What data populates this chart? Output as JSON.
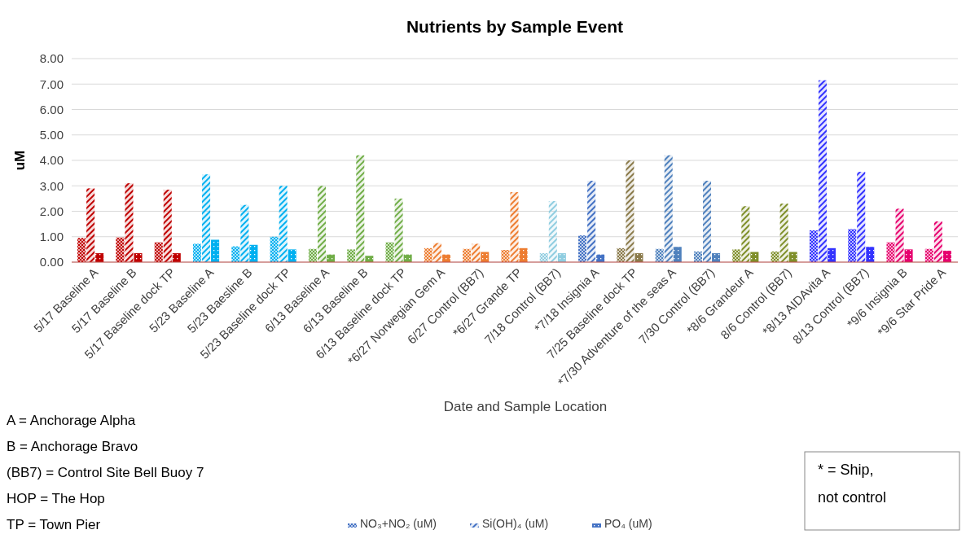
{
  "chart_data": {
    "type": "bar",
    "title": "Nutrients by Sample Event",
    "xlabel": "Date and Sample Location",
    "ylabel": "uM",
    "categories": [
      "5/17 Baseline A",
      "5/17 Baseline B",
      "5/17 Baseline dock TP",
      "5/23 Baseline A",
      "5/23 Baesline B",
      "5/23 Baseline dock TP",
      "6/13 Baseline A",
      "6/13 Baseline B",
      "6/13 Baseline dock TP",
      "*6/27 Norwegian Gem A",
      "6/27 Control (BB7)",
      "*6/27 Grande  TP",
      "7/18 Control (BB7)",
      "*7/18 Insignia A",
      "7/25 Baseline dock TP",
      "*7/30 Adventure of the seas A",
      "7/30 Control (BB7)",
      "*8/6 Grandeur A",
      "8/6 Control (BB7)",
      "*8/13 AIDAvita A",
      "8/13 Control (BB7)",
      "*9/6 Insignia B",
      "*9/6 Star Pride A"
    ],
    "series": [
      {
        "name": "NO₃+NO₂ (uM)",
        "color": "#4472c4",
        "colors": [
          "#c00000",
          "#c00000",
          "#c00000",
          "#00b0f0",
          "#00b0f0",
          "#00b0f0",
          "#70ad47",
          "#70ad47",
          "#70ad47",
          "#ed7d31",
          "#ed7d31",
          "#ed7d31",
          "#8fcde0",
          "#4472c4",
          "#8a7a4a",
          "#4f81bd",
          "#4f81bd",
          "#7f8f2a",
          "#7f8f2a",
          "#3333ff",
          "#3333ff",
          "#e6006e",
          "#e6006e"
        ],
        "values": [
          0.95,
          0.97,
          0.78,
          0.72,
          0.62,
          1.0,
          0.52,
          0.5,
          0.78,
          0.55,
          0.52,
          0.48,
          0.35,
          1.05,
          0.55,
          0.52,
          0.42,
          0.5,
          0.42,
          1.25,
          1.3,
          0.78,
          0.52
        ]
      },
      {
        "name": "Si(OH)₄ (uM)",
        "color": "#4472c4",
        "colors": [
          "#c00000",
          "#c00000",
          "#c00000",
          "#00b0f0",
          "#00b0f0",
          "#00b0f0",
          "#70ad47",
          "#70ad47",
          "#70ad47",
          "#ed7d31",
          "#ed7d31",
          "#ed7d31",
          "#8fcde0",
          "#4472c4",
          "#8a7a4a",
          "#4f81bd",
          "#4f81bd",
          "#7f8f2a",
          "#7f8f2a",
          "#3333ff",
          "#3333ff",
          "#e6006e",
          "#e6006e"
        ],
        "values": [
          2.9,
          3.1,
          2.85,
          3.45,
          2.25,
          3.0,
          3.0,
          4.2,
          2.5,
          0.75,
          0.72,
          2.75,
          2.4,
          3.2,
          4.0,
          4.2,
          3.2,
          2.2,
          2.3,
          7.15,
          3.55,
          2.1,
          1.6
        ]
      },
      {
        "name": "PO₄ (uM)",
        "color": "#4472c4",
        "colors": [
          "#c00000",
          "#c00000",
          "#c00000",
          "#00b0f0",
          "#00b0f0",
          "#00b0f0",
          "#70ad47",
          "#70ad47",
          "#70ad47",
          "#ed7d31",
          "#ed7d31",
          "#ed7d31",
          "#8fcde0",
          "#4472c4",
          "#8a7a4a",
          "#4f81bd",
          "#4f81bd",
          "#7f8f2a",
          "#7f8f2a",
          "#3333ff",
          "#3333ff",
          "#e6006e",
          "#e6006e"
        ],
        "values": [
          0.35,
          0.35,
          0.35,
          0.88,
          0.68,
          0.5,
          0.3,
          0.25,
          0.3,
          0.3,
          0.4,
          0.55,
          0.35,
          0.3,
          0.35,
          0.6,
          0.35,
          0.4,
          0.4,
          0.55,
          0.6,
          0.5,
          0.45
        ]
      }
    ],
    "ylim": [
      0,
      8
    ],
    "yticks": [
      {
        "value": 0,
        "label": "0.00"
      },
      {
        "value": 1,
        "label": "1.00"
      },
      {
        "value": 2,
        "label": "2.00"
      },
      {
        "value": 3,
        "label": "3.00"
      },
      {
        "value": 4,
        "label": "4.00"
      },
      {
        "value": 5,
        "label": "5.00"
      },
      {
        "value": 6,
        "label": "6.00"
      },
      {
        "value": 7,
        "label": "7.00"
      },
      {
        "value": 8,
        "label": "8.00"
      }
    ],
    "grid": "y",
    "legend": "bottom",
    "annotations": [
      "A = Anchorage Alpha",
      "B = Anchorage Bravo",
      "(BB7) = Control Site Bell Buoy 7",
      "HOP = The Hop",
      "TP = Town Pier",
      "* = Ship, not control"
    ]
  }
}
